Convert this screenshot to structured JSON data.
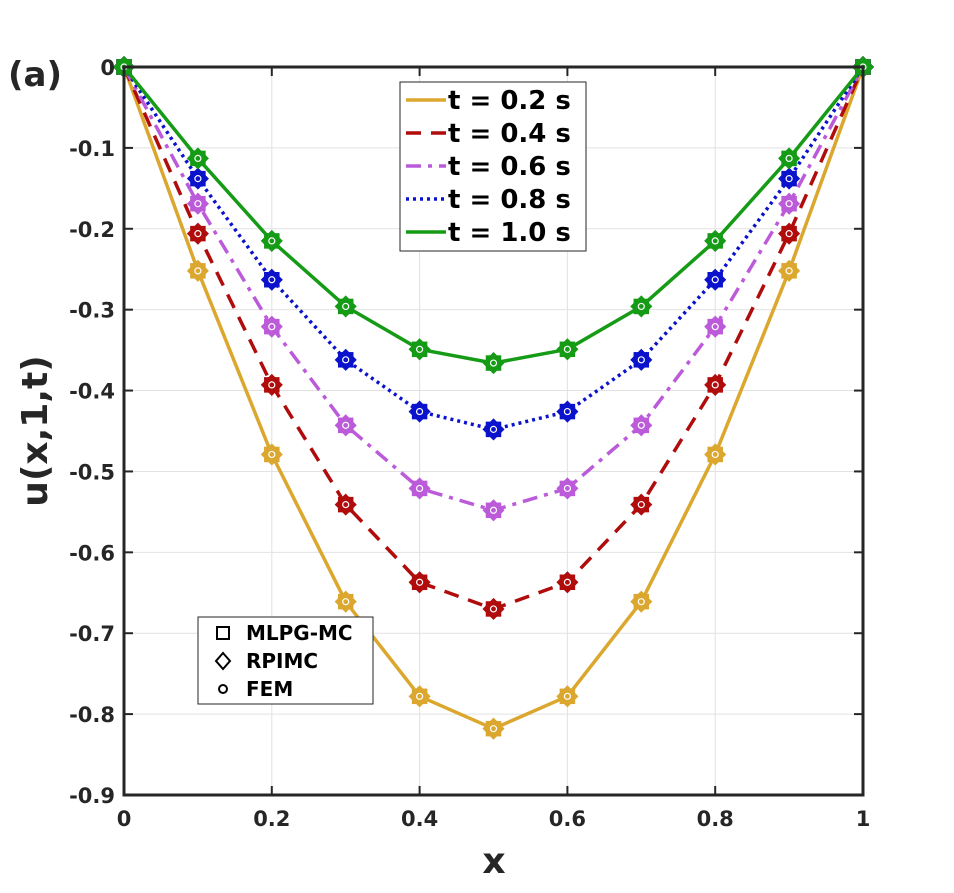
{
  "panel_label": "(a)",
  "chart_data": {
    "type": "line",
    "xlabel": "x",
    "ylabel": "u(x,1,t)",
    "xlim": [
      0,
      1
    ],
    "ylim": [
      -0.9,
      0
    ],
    "x_ticks": [
      "0",
      "0.2",
      "0.4",
      "0.6",
      "0.8",
      "1"
    ],
    "y_ticks": [
      "0",
      "-0.1",
      "-0.2",
      "-0.3",
      "-0.4",
      "-0.5",
      "-0.6",
      "-0.7",
      "-0.8",
      "-0.9"
    ],
    "grid": true,
    "x": [
      0,
      0.1,
      0.2,
      0.3,
      0.4,
      0.5,
      0.6,
      0.7,
      0.8,
      0.9,
      1.0
    ],
    "series": [
      {
        "name": "t = 0.2 s",
        "color": "#DBA72E",
        "style": "solid",
        "values": [
          0,
          -0.252,
          -0.479,
          -0.661,
          -0.778,
          -0.818,
          -0.778,
          -0.661,
          -0.479,
          -0.252,
          0
        ]
      },
      {
        "name": "t = 0.4 s",
        "color": "#B00C0C",
        "style": "dashed",
        "values": [
          0,
          -0.206,
          -0.393,
          -0.541,
          -0.637,
          -0.67,
          -0.637,
          -0.541,
          -0.393,
          -0.206,
          0
        ]
      },
      {
        "name": "t = 0.6 s",
        "color": "#BC5BDA",
        "style": "dashdot",
        "values": [
          0,
          -0.169,
          -0.321,
          -0.443,
          -0.521,
          -0.548,
          -0.521,
          -0.443,
          -0.321,
          -0.169,
          0
        ]
      },
      {
        "name": "t = 0.8 s",
        "color": "#0A12CC",
        "style": "dotted",
        "values": [
          0,
          -0.138,
          -0.263,
          -0.362,
          -0.426,
          -0.448,
          -0.426,
          -0.362,
          -0.263,
          -0.138,
          0
        ]
      },
      {
        "name": "t = 1.0 s",
        "color": "#159B15",
        "style": "solid",
        "values": [
          0,
          -0.113,
          -0.215,
          -0.296,
          -0.349,
          -0.366,
          -0.349,
          -0.296,
          -0.215,
          -0.113,
          0
        ]
      }
    ],
    "legend_position": "top-center",
    "marker_legend": [
      "MLPG-MC",
      "RPIMC",
      "FEM"
    ],
    "marker_legend_position": "bottom-left"
  }
}
